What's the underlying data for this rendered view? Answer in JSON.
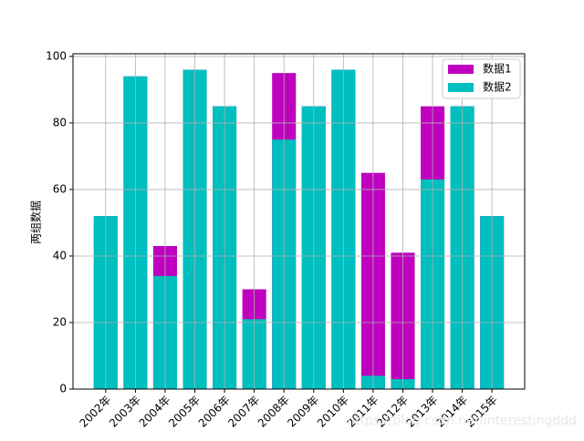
{
  "chart_data": {
    "type": "bar",
    "barmode": "overlay",
    "ylabel": "两组数据",
    "categories": [
      "2002年",
      "2003年",
      "2004年",
      "2005年",
      "2006年",
      "2007年",
      "2008年",
      "2009年",
      "2010年",
      "2011年",
      "2012年",
      "2013年",
      "2014年",
      "2015年"
    ],
    "series": [
      {
        "name": "数据1",
        "color": "#bf00bf",
        "values": [
          52,
          94,
          43,
          96,
          85,
          30,
          95,
          85,
          96,
          65,
          41,
          85,
          85,
          52
        ]
      },
      {
        "name": "数据2",
        "color": "#00bfbf",
        "values": [
          52,
          94,
          34,
          96,
          85,
          21,
          75,
          85,
          96,
          4,
          3,
          63,
          85,
          52
        ]
      }
    ],
    "ylim": [
      0,
      100.8
    ],
    "yticks": [
      0,
      20,
      40,
      60,
      80,
      100
    ],
    "grid": true,
    "legend": "upper right",
    "watermark": "https://blog.csdn.net/interestingddd"
  }
}
